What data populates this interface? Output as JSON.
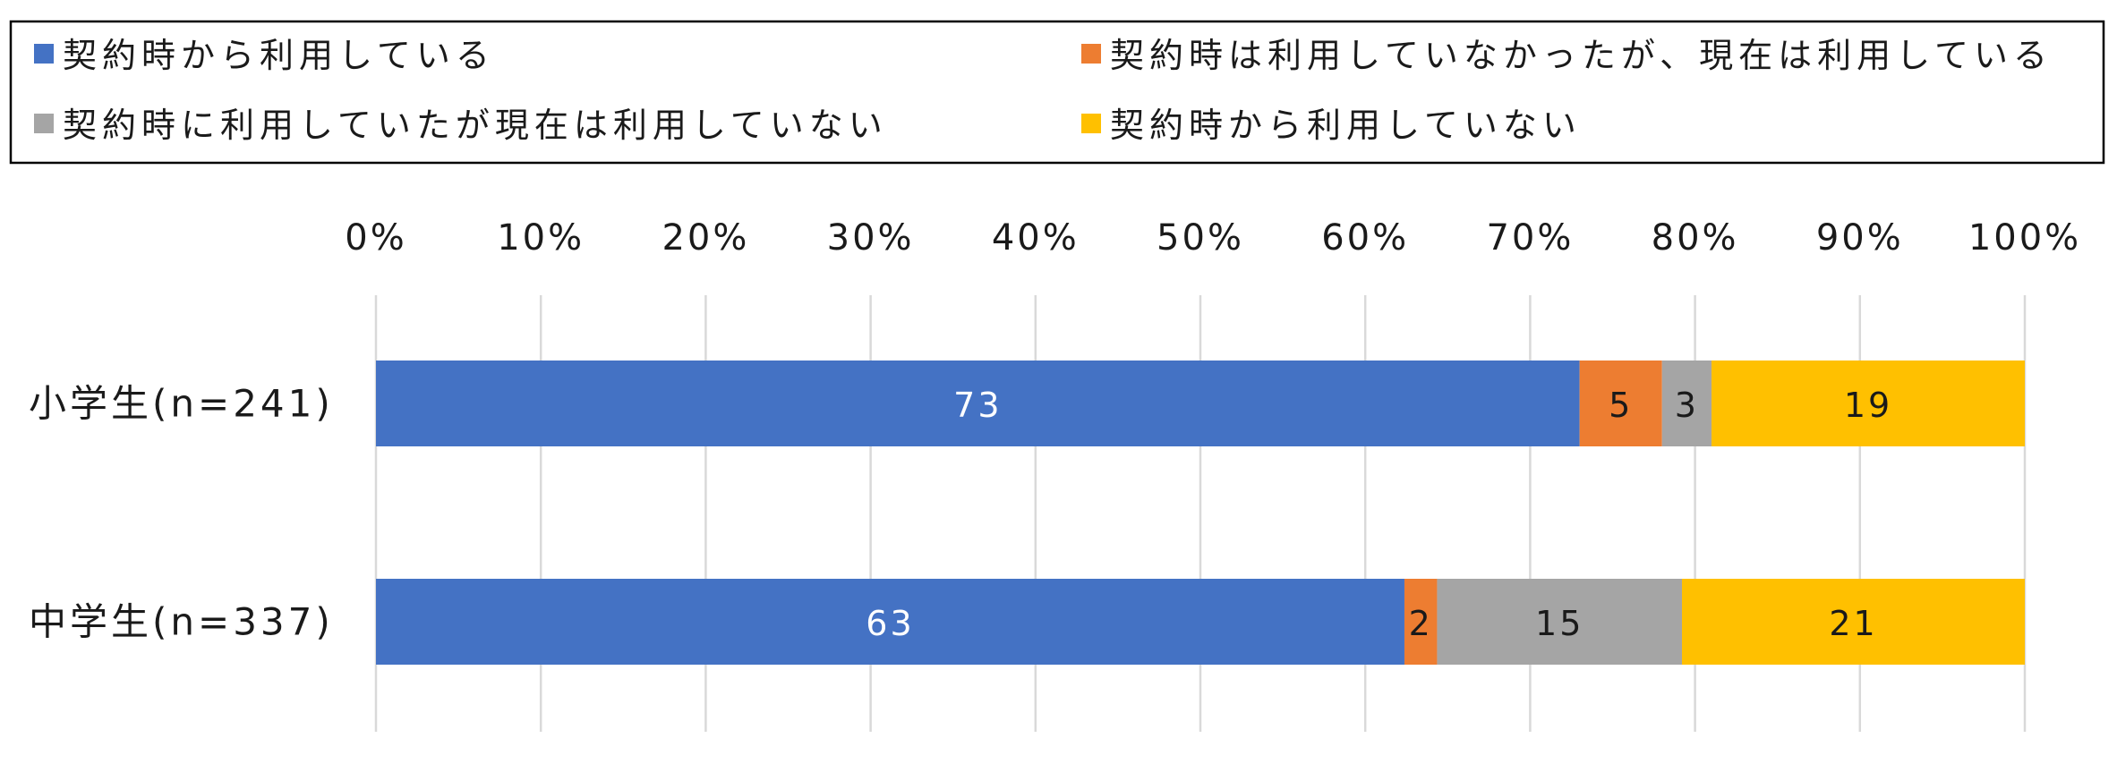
{
  "chart_data": {
    "type": "bar",
    "orientation": "horizontal",
    "stacked": true,
    "categories": [
      "小学生(n=241)",
      "中学生(n=337)"
    ],
    "series": [
      {
        "name": "契約時から利用している",
        "color": "#4472C4",
        "label_color": "#ffffff",
        "values": [
          73,
          63
        ]
      },
      {
        "name": "契約時は利用していなかったが、現在は利用している",
        "color": "#ED7D31",
        "label_color": "#1a1a1a",
        "values": [
          5,
          2
        ]
      },
      {
        "name": "契約時に利用していたが現在は利用していない",
        "color": "#A5A5A5",
        "label_color": "#1a1a1a",
        "values": [
          3,
          15
        ]
      },
      {
        "name": "契約時から利用していない",
        "color": "#FFC000",
        "label_color": "#1a1a1a",
        "values": [
          19,
          21
        ]
      }
    ],
    "x_ticks": [
      "0%",
      "10%",
      "20%",
      "30%",
      "40%",
      "50%",
      "60%",
      "70%",
      "80%",
      "90%",
      "100%"
    ],
    "xlim": [
      0,
      100
    ],
    "grid": true,
    "legend_position": "top",
    "title": "",
    "xlabel": "",
    "ylabel": ""
  }
}
